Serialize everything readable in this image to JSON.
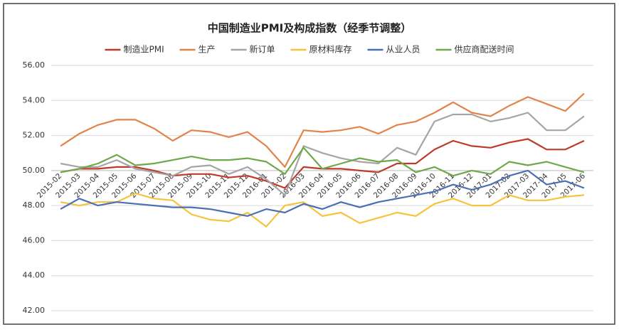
{
  "chart_data": {
    "type": "line",
    "title": "中国制造业PMI及构成指数（经季节调整）",
    "categories": [
      "2015-02",
      "2015-03",
      "2015-04",
      "2015-05",
      "2015-06",
      "2015-07",
      "2015-08",
      "2015-09",
      "2015-10",
      "2015-11",
      "2015-12",
      "2016-01",
      "2016-02",
      "2016-03",
      "2016-04",
      "2016-05",
      "2016-06",
      "2016-07",
      "2016-08",
      "2016-09",
      "2016-10",
      "2016-11",
      "2016-12",
      "2017-01",
      "2017-02",
      "2017-03",
      "2017-04",
      "2017-05",
      "2017-06"
    ],
    "series": [
      {
        "name": "制造业PMI",
        "color": "#be3b2b",
        "values": [
          49.9,
          50.1,
          50.1,
          50.2,
          50.2,
          50.0,
          49.7,
          49.8,
          49.8,
          49.6,
          49.7,
          49.4,
          49.0,
          50.2,
          50.1,
          50.1,
          50.0,
          49.9,
          50.4,
          50.4,
          51.2,
          51.7,
          51.4,
          51.3,
          51.6,
          51.8,
          51.2,
          51.2,
          51.7
        ]
      },
      {
        "name": "生产",
        "color": "#e2834a",
        "values": [
          51.4,
          52.1,
          52.6,
          52.9,
          52.9,
          52.4,
          51.7,
          52.3,
          52.2,
          51.9,
          52.2,
          51.4,
          50.2,
          52.3,
          52.2,
          52.3,
          52.5,
          52.1,
          52.6,
          52.8,
          53.3,
          53.9,
          53.3,
          53.1,
          53.7,
          54.2,
          53.8,
          53.4,
          54.4
        ]
      },
      {
        "name": "新订单",
        "color": "#a5a5a5",
        "values": [
          50.4,
          50.2,
          50.2,
          50.6,
          50.1,
          49.9,
          49.7,
          50.2,
          50.3,
          49.8,
          50.2,
          49.5,
          48.6,
          51.4,
          51.0,
          50.7,
          50.5,
          50.4,
          51.3,
          50.9,
          52.8,
          53.2,
          53.2,
          52.8,
          53.0,
          53.3,
          52.3,
          52.3,
          53.1
        ]
      },
      {
        "name": "原材料库存",
        "color": "#f8c33a",
        "values": [
          48.2,
          48.0,
          48.2,
          48.2,
          48.7,
          48.4,
          48.3,
          47.5,
          47.2,
          47.1,
          47.6,
          46.8,
          48.0,
          48.2,
          47.4,
          47.6,
          47.0,
          47.3,
          47.6,
          47.4,
          48.1,
          48.4,
          48.0,
          48.0,
          48.6,
          48.3,
          48.3,
          48.5,
          48.6
        ]
      },
      {
        "name": "从业人员",
        "color": "#4a6fb5",
        "values": [
          47.8,
          48.4,
          48.0,
          48.2,
          48.1,
          48.0,
          47.9,
          47.9,
          47.8,
          47.6,
          47.4,
          47.8,
          47.6,
          48.1,
          47.8,
          48.2,
          47.9,
          48.2,
          48.4,
          48.6,
          48.8,
          49.2,
          48.9,
          49.2,
          49.7,
          50.0,
          49.2,
          49.4,
          49.0
        ]
      },
      {
        "name": "供应商配送时间",
        "color": "#6fa84a",
        "values": [
          49.9,
          50.1,
          50.4,
          50.9,
          50.3,
          50.4,
          50.6,
          50.8,
          50.6,
          50.6,
          50.7,
          50.5,
          49.8,
          51.3,
          50.1,
          50.4,
          50.7,
          50.5,
          50.6,
          49.9,
          50.2,
          49.7,
          50.0,
          49.8,
          50.5,
          50.3,
          50.5,
          50.2,
          49.9
        ]
      }
    ],
    "ylim": [
      42,
      56
    ],
    "yticks": [
      {
        "value": 42,
        "label": "42.00"
      },
      {
        "value": 44,
        "label": "44.00"
      },
      {
        "value": 46,
        "label": "46.00"
      },
      {
        "value": 48,
        "label": "48.00"
      },
      {
        "value": 50,
        "label": "50.00"
      },
      {
        "value": 52,
        "label": "52.00"
      },
      {
        "value": 54,
        "label": "54.00"
      },
      {
        "value": 56,
        "label": "56.00"
      }
    ],
    "x_axis_crossing": 50,
    "grid": true,
    "legend": "top"
  }
}
